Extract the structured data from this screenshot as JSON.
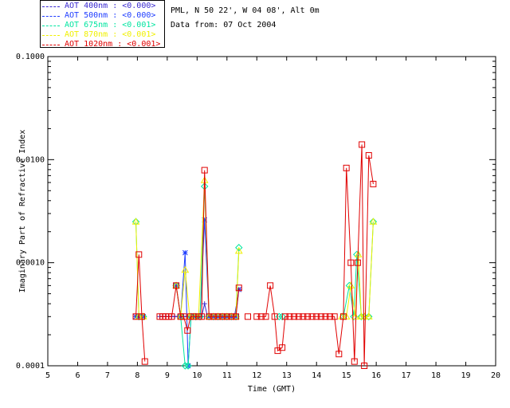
{
  "header": {
    "site_line": "PML, N 50 22', W 04 08', Alt 0m",
    "date_line": "Data from: 07 Oct 2004"
  },
  "legend": [
    {
      "label": "AOT  400nm : <0.000>",
      "color": "#3a2ad0"
    },
    {
      "label": "AOT  500nm : <0.000>",
      "color": "#1e3cff"
    },
    {
      "label": "AOT  675nm : <0.001>",
      "color": "#00e5a0"
    },
    {
      "label": "AOT  870nm : <0.001>",
      "color": "#f0f000"
    },
    {
      "label": "AOT 1020nm : <0.001>",
      "color": "#e00000"
    }
  ],
  "chart_data": {
    "type": "line",
    "title": "",
    "xlabel": "Time (GMT)",
    "ylabel": "Imaginary Part of Refractive Index",
    "xlim": [
      5,
      20
    ],
    "ylim": [
      0.0001,
      0.1
    ],
    "yscale": "log",
    "x_ticks": [
      "5",
      "6",
      "7",
      "8",
      "9",
      "10",
      "11",
      "12",
      "13",
      "14",
      "15",
      "16",
      "17",
      "18",
      "19",
      "20"
    ],
    "y_ticks": [
      "0.0001",
      "0.0010",
      "0.0100",
      "0.1000"
    ],
    "series": [
      {
        "name": "AOT  400nm : <0.000>",
        "color": "#3a2ad0",
        "marker": "plus",
        "segments": [
          [
            [
              7.95,
              0.0003
            ],
            [
              8.05,
              0.0003
            ],
            [
              8.2,
              0.0003
            ]
          ],
          [
            [
              8.75,
              0.0003
            ],
            [
              8.85,
              0.0003
            ],
            [
              8.95,
              0.0003
            ],
            [
              9.05,
              0.0003
            ],
            [
              9.15,
              0.0003
            ],
            [
              9.25,
              0.0003
            ],
            [
              9.35,
              0.0003
            ],
            [
              9.45,
              0.0003
            ],
            [
              9.55,
              0.0003
            ],
            [
              9.65,
              0.0003
            ],
            [
              9.75,
              0.0003
            ],
            [
              9.85,
              0.0003
            ],
            [
              9.95,
              0.0003
            ],
            [
              10.05,
              0.0003
            ],
            [
              10.15,
              0.0003
            ],
            [
              10.25,
              0.0004
            ],
            [
              10.35,
              0.0003
            ],
            [
              10.45,
              0.0003
            ],
            [
              10.55,
              0.0003
            ],
            [
              10.65,
              0.0003
            ],
            [
              10.75,
              0.0003
            ],
            [
              10.85,
              0.0003
            ],
            [
              10.95,
              0.0003
            ],
            [
              11.05,
              0.0003
            ],
            [
              11.15,
              0.0003
            ],
            [
              11.25,
              0.0003
            ],
            [
              11.4,
              0.00055
            ]
          ]
        ]
      },
      {
        "name": "AOT  500nm : <0.000>",
        "color": "#1e3cff",
        "marker": "star",
        "segments": [
          [
            [
              7.95,
              0.0003
            ],
            [
              8.05,
              0.0003
            ],
            [
              8.2,
              0.0003
            ]
          ],
          [
            [
              9.3,
              0.0006
            ],
            [
              9.45,
              0.0003
            ],
            [
              9.6,
              0.00125
            ],
            [
              9.7,
              0.0001
            ],
            [
              9.8,
              0.0003
            ],
            [
              9.95,
              0.0003
            ],
            [
              10.1,
              0.0003
            ],
            [
              10.25,
              0.0026
            ],
            [
              10.4,
              0.0003
            ],
            [
              10.55,
              0.0003
            ],
            [
              10.7,
              0.0003
            ],
            [
              10.85,
              0.0003
            ],
            [
              11.0,
              0.0003
            ],
            [
              11.15,
              0.0003
            ],
            [
              11.3,
              0.0003
            ],
            [
              11.4,
              0.00055
            ]
          ]
        ]
      },
      {
        "name": "AOT  675nm : <0.001>",
        "color": "#00e5a0",
        "marker": "diamond",
        "segments": [
          [
            [
              7.95,
              0.0025
            ],
            [
              8.05,
              0.0003
            ],
            [
              8.2,
              0.0003
            ]
          ],
          [
            [
              9.3,
              0.0006
            ],
            [
              9.45,
              0.0003
            ],
            [
              9.6,
              0.0001
            ],
            [
              9.7,
              0.0001
            ],
            [
              9.8,
              0.0003
            ],
            [
              9.95,
              0.0003
            ],
            [
              10.1,
              0.0003
            ],
            [
              10.25,
              0.0055
            ],
            [
              10.4,
              0.0003
            ],
            [
              10.55,
              0.0003
            ],
            [
              10.7,
              0.0003
            ],
            [
              10.85,
              0.0003
            ],
            [
              11.0,
              0.0003
            ],
            [
              11.15,
              0.0003
            ],
            [
              11.3,
              0.0003
            ],
            [
              11.4,
              0.0014
            ]
          ],
          [
            [
              12.75,
              0.0003
            ],
            [
              12.85,
              0.0003
            ]
          ],
          [
            [
              14.9,
              0.0003
            ],
            [
              15.1,
              0.0006
            ],
            [
              15.25,
              0.0003
            ],
            [
              15.35,
              0.0012
            ],
            [
              15.5,
              0.0003
            ],
            [
              15.6,
              0.0003
            ],
            [
              15.75,
              0.0003
            ],
            [
              15.9,
              0.0025
            ]
          ]
        ]
      },
      {
        "name": "AOT  870nm : <0.001>",
        "color": "#f0f000",
        "marker": "triangle",
        "segments": [
          [
            [
              7.95,
              0.0025
            ],
            [
              8.05,
              0.0003
            ],
            [
              8.2,
              0.0003
            ]
          ],
          [
            [
              9.3,
              0.0006
            ],
            [
              9.45,
              0.0003
            ],
            [
              9.6,
              0.00085
            ],
            [
              9.75,
              0.0003
            ],
            [
              9.9,
              0.0003
            ],
            [
              10.05,
              0.0003
            ],
            [
              10.25,
              0.0063
            ],
            [
              10.4,
              0.0003
            ],
            [
              10.55,
              0.0003
            ],
            [
              10.7,
              0.0003
            ],
            [
              10.85,
              0.0003
            ],
            [
              11.0,
              0.0003
            ],
            [
              11.15,
              0.0003
            ],
            [
              11.3,
              0.0003
            ],
            [
              11.4,
              0.0013
            ]
          ],
          [
            [
              14.85,
              0.0003
            ],
            [
              15.0,
              0.0003
            ],
            [
              15.15,
              0.0006
            ],
            [
              15.3,
              0.0003
            ],
            [
              15.4,
              0.0012
            ],
            [
              15.5,
              0.0003
            ],
            [
              15.6,
              0.0003
            ],
            [
              15.75,
              0.0003
            ],
            [
              15.9,
              0.0025
            ]
          ]
        ]
      },
      {
        "name": "AOT 1020nm : <0.001>",
        "color": "#e00000",
        "marker": "square",
        "segments": [
          [
            [
              7.95,
              0.0003
            ],
            [
              8.05,
              0.0012
            ],
            [
              8.15,
              0.0003
            ],
            [
              8.25,
              0.00011
            ]
          ],
          [
            [
              8.75,
              0.0003
            ],
            [
              8.85,
              0.0003
            ],
            [
              8.95,
              0.0003
            ],
            [
              9.05,
              0.0003
            ],
            [
              9.15,
              0.0003
            ],
            [
              9.3,
              0.0006
            ],
            [
              9.45,
              0.0003
            ],
            [
              9.55,
              0.0003
            ],
            [
              9.68,
              0.00022
            ],
            [
              9.78,
              0.0003
            ],
            [
              9.9,
              0.0003
            ],
            [
              10.05,
              0.0003
            ],
            [
              10.15,
              0.0003
            ],
            [
              10.25,
              0.0079
            ],
            [
              10.4,
              0.0003
            ],
            [
              10.55,
              0.0003
            ],
            [
              10.7,
              0.0003
            ],
            [
              10.85,
              0.0003
            ],
            [
              11.0,
              0.0003
            ],
            [
              11.15,
              0.0003
            ],
            [
              11.3,
              0.0003
            ],
            [
              11.4,
              0.00057
            ]
          ],
          [
            [
              11.7,
              0.0003
            ]
          ],
          [
            [
              12.0,
              0.0003
            ],
            [
              12.15,
              0.0003
            ],
            [
              12.3,
              0.0003
            ],
            [
              12.45,
              0.0006
            ],
            [
              12.6,
              0.0003
            ],
            [
              12.7,
              0.00014
            ],
            [
              12.85,
              0.00015
            ],
            [
              12.95,
              0.0003
            ],
            [
              13.1,
              0.0003
            ],
            [
              13.25,
              0.0003
            ],
            [
              13.4,
              0.0003
            ],
            [
              13.55,
              0.0003
            ],
            [
              13.7,
              0.0003
            ],
            [
              13.85,
              0.0003
            ],
            [
              14.0,
              0.0003
            ],
            [
              14.15,
              0.0003
            ],
            [
              14.3,
              0.0003
            ],
            [
              14.45,
              0.0003
            ],
            [
              14.6,
              0.0003
            ],
            [
              14.75,
              0.00013
            ],
            [
              14.9,
              0.0003
            ],
            [
              15.0,
              0.0083
            ],
            [
              15.15,
              0.001
            ],
            [
              15.27,
              0.00011
            ],
            [
              15.38,
              0.001
            ],
            [
              15.52,
              0.014
            ],
            [
              15.6,
              0.0001
            ],
            [
              15.75,
              0.011
            ],
            [
              15.9,
              0.0058
            ]
          ]
        ]
      }
    ]
  }
}
